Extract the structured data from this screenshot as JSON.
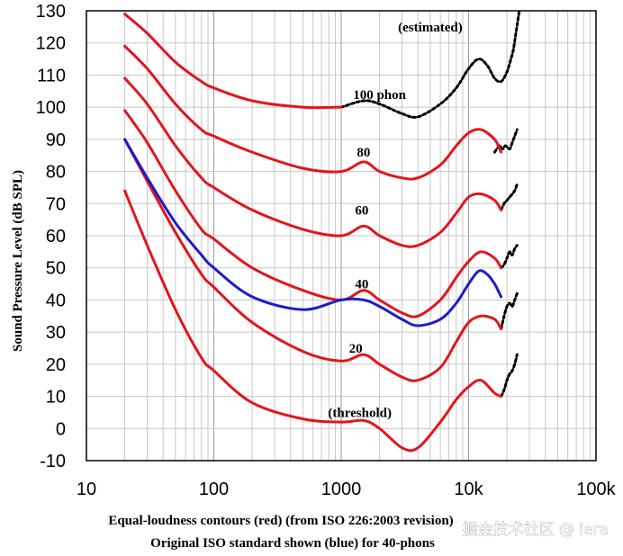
{
  "chart_data": {
    "type": "line",
    "title": "",
    "xlabel_line1": "Equal-loudness contours (red) (from ISO 226:2003 revision)",
    "xlabel_line2": "Original ISO standard shown (blue) for 40-phons",
    "ylabel": "Sound Pressure Level (dB SPL)",
    "xscale": "log",
    "xlim": [
      10,
      100000
    ],
    "ylim": [
      -10,
      130
    ],
    "x_ticks": [
      {
        "value": 10,
        "label": "10"
      },
      {
        "value": 100,
        "label": "100"
      },
      {
        "value": 1000,
        "label": "1000"
      },
      {
        "value": 10000,
        "label": "10k"
      },
      {
        "value": 100000,
        "label": "100k"
      }
    ],
    "y_ticks": [
      {
        "value": 130,
        "label": "130"
      },
      {
        "value": 120,
        "label": "120"
      },
      {
        "value": 110,
        "label": "110"
      },
      {
        "value": 100,
        "label": "100"
      },
      {
        "value": 90,
        "label": "90"
      },
      {
        "value": 80,
        "label": "80"
      },
      {
        "value": 70,
        "label": "70"
      },
      {
        "value": 60,
        "label": "60"
      },
      {
        "value": 50,
        "label": "50"
      },
      {
        "value": 40,
        "label": "40"
      },
      {
        "value": 30,
        "label": "30"
      },
      {
        "value": 20,
        "label": "20"
      },
      {
        "value": 10,
        "label": "10"
      },
      {
        "value": 0,
        "label": "0"
      },
      {
        "value": -10,
        "label": "-10"
      }
    ],
    "grid": true,
    "colors": {
      "iso2003": "#e3151b",
      "original": "#1c1ccd",
      "estimated": "#000000",
      "grid": "#c8c8c8"
    },
    "series": [
      {
        "name": "threshold",
        "group": "iso2003",
        "x": [
          20,
          30,
          50,
          80,
          100,
          200,
          500,
          1000,
          1500,
          2000,
          3000,
          4000,
          6000,
          8000,
          10000,
          12500,
          16000,
          18000
        ],
        "y": [
          74,
          57,
          37,
          22,
          18,
          8,
          3,
          2,
          2.5,
          0,
          -6,
          -6,
          2,
          9,
          13,
          15,
          11,
          10
        ]
      },
      {
        "name": "20 phon",
        "group": "iso2003",
        "x": [
          20,
          30,
          50,
          80,
          100,
          200,
          500,
          1000,
          1500,
          2000,
          3000,
          4000,
          6000,
          8000,
          10000,
          12500,
          16000,
          18000
        ],
        "y": [
          90,
          77,
          61,
          48,
          44,
          33,
          24,
          21,
          23,
          20,
          16,
          15,
          19,
          27,
          33,
          35,
          34,
          31
        ]
      },
      {
        "name": "40 phon",
        "group": "iso2003",
        "x": [
          20,
          30,
          50,
          80,
          100,
          200,
          500,
          1000,
          1500,
          2000,
          3000,
          4000,
          6000,
          8000,
          10000,
          12500,
          16000,
          18000
        ],
        "y": [
          99,
          89,
          74,
          62,
          59,
          50,
          43,
          40,
          43,
          40,
          36,
          35,
          40,
          47,
          52,
          55,
          53,
          50
        ]
      },
      {
        "name": "60 phon",
        "group": "iso2003",
        "x": [
          20,
          30,
          50,
          80,
          100,
          200,
          500,
          1000,
          1500,
          2000,
          3000,
          4000,
          6000,
          8000,
          10000,
          12500,
          16000,
          18000
        ],
        "y": [
          109,
          101,
          88,
          78,
          75,
          68,
          62,
          60,
          63,
          60,
          57,
          57,
          61,
          67,
          72,
          73,
          71,
          68
        ]
      },
      {
        "name": "80 phon",
        "group": "iso2003",
        "x": [
          20,
          30,
          50,
          80,
          100,
          200,
          500,
          1000,
          1500,
          2000,
          3000,
          4000,
          6000,
          8000,
          10000,
          12500,
          16000,
          18000
        ],
        "y": [
          119,
          112,
          101,
          93,
          91,
          86,
          81,
          80,
          83,
          80,
          78,
          78,
          82,
          88,
          92,
          93,
          90,
          86
        ]
      },
      {
        "name": "100 phon",
        "group": "iso2003",
        "x": [
          20,
          30,
          50,
          80,
          100,
          200,
          500,
          1000
        ],
        "y": [
          129,
          123,
          114,
          108,
          106,
          102,
          100,
          100
        ]
      },
      {
        "name": "100 phon (estimated)",
        "group": "estimated",
        "x": [
          1000,
          1500,
          2000,
          3000,
          4000,
          6000,
          8000,
          10000,
          12000,
          14000,
          16000,
          18000,
          20000,
          21500,
          22500,
          23500,
          25000
        ],
        "y": [
          100,
          102,
          101,
          98,
          97,
          101,
          106,
          112,
          115,
          113,
          109,
          108,
          111,
          115,
          118,
          123,
          130
        ]
      },
      {
        "name": "Original ISO 40 phon",
        "group": "original",
        "x": [
          20,
          30,
          50,
          80,
          100,
          200,
          500,
          1000,
          1500,
          2000,
          3000,
          4000,
          6000,
          8000,
          10000,
          12000,
          14000,
          16000,
          18000
        ],
        "y": [
          90,
          78,
          64,
          54,
          50,
          41,
          37,
          40,
          40,
          38,
          34,
          32,
          34,
          39,
          45,
          49,
          48,
          45,
          41
        ]
      }
    ],
    "estimated_tails": [
      {
        "x": [
          16000,
          17500,
          18500,
          19500,
          21000,
          22000,
          23000,
          24000
        ],
        "y": [
          86,
          88,
          87,
          88,
          87,
          89,
          91,
          93
        ]
      },
      {
        "x": [
          18000,
          19000,
          20000,
          21000,
          22000,
          23000,
          24000
        ],
        "y": [
          68,
          70,
          71,
          72,
          73,
          74,
          76
        ]
      },
      {
        "x": [
          18000,
          19000,
          20000,
          21000,
          22000,
          23000,
          24000
        ],
        "y": [
          50,
          51,
          53,
          55,
          54,
          56,
          57
        ]
      },
      {
        "x": [
          18000,
          19000,
          20000,
          21000,
          22000,
          23000,
          24000
        ],
        "y": [
          31,
          35,
          38,
          39,
          38,
          40,
          42
        ]
      },
      {
        "x": [
          18000,
          19000,
          20000,
          21000,
          22000,
          23000,
          24000
        ],
        "y": [
          10,
          12,
          15,
          17,
          18,
          20,
          23
        ]
      }
    ],
    "annotations": [
      {
        "text": "(estimated)",
        "x": 5000,
        "y": 125
      },
      {
        "text": "100 phon",
        "x": 2000,
        "y": 104
      },
      {
        "text": "80",
        "x": 1500,
        "y": 86
      },
      {
        "text": "60",
        "x": 1450,
        "y": 68
      },
      {
        "text": "40",
        "x": 1450,
        "y": 45
      },
      {
        "text": "20",
        "x": 1300,
        "y": 25
      },
      {
        "text": "(threshold)",
        "x": 1400,
        "y": 5
      }
    ]
  },
  "watermark": "掘金技术社区 @ iera"
}
